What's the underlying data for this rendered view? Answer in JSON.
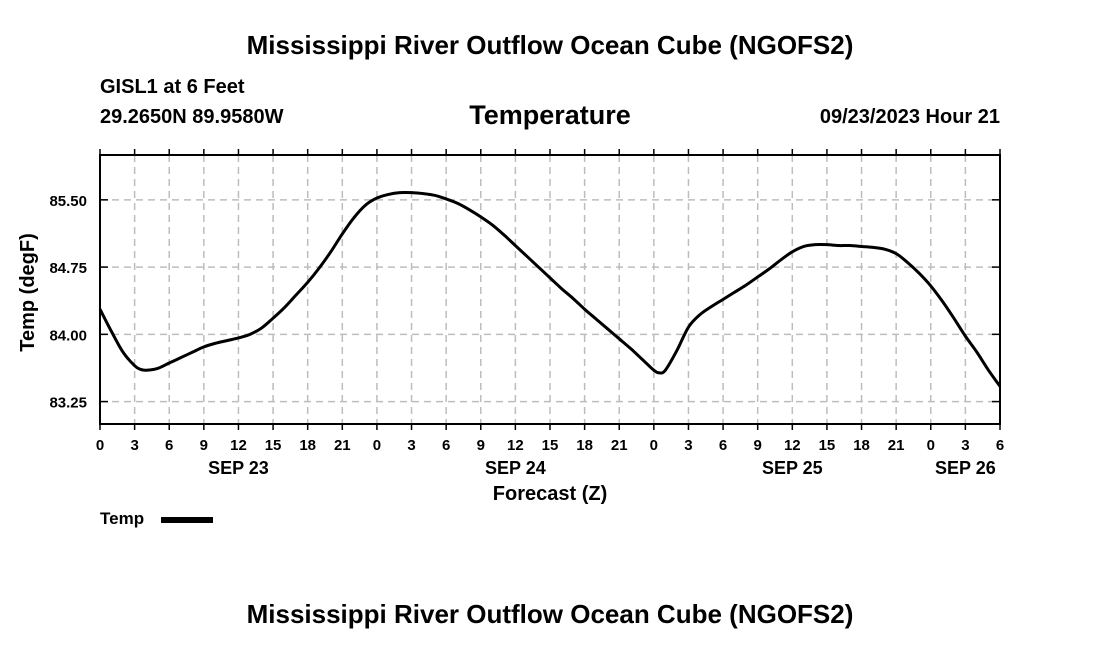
{
  "header": {
    "title": "Mississippi River Outflow Ocean Cube (NGOFS2)",
    "station": "GISL1 at 6 Feet",
    "coords": "29.2650N  89.9580W",
    "variable": "Temperature",
    "datetime": "09/23/2023 Hour 21"
  },
  "footer": {
    "title": "Mississippi River Outflow Ocean Cube (NGOFS2)"
  },
  "legend": {
    "label": "Temp",
    "color": "#000000"
  },
  "chart_data": {
    "type": "line",
    "title": "Temperature",
    "xlabel": "Forecast (Z)",
    "ylabel": "Temp (degF)",
    "x_unit": "hours since 09/23/2023 00Z",
    "xlim": [
      0,
      78
    ],
    "ylim": [
      83.0,
      86.0
    ],
    "grid": true,
    "yticks": [
      83.25,
      84.0,
      84.75,
      85.5
    ],
    "ytick_labels": [
      "83.25",
      "84.00",
      "84.75",
      "85.50"
    ],
    "xticks": [
      0,
      3,
      6,
      9,
      12,
      15,
      18,
      21,
      24,
      27,
      30,
      33,
      36,
      39,
      42,
      45,
      48,
      51,
      54,
      57,
      60,
      63,
      66,
      69,
      72,
      75,
      78
    ],
    "xtick_labels": [
      "0",
      "3",
      "6",
      "9",
      "12",
      "15",
      "18",
      "21",
      "0",
      "3",
      "6",
      "9",
      "12",
      "15",
      "18",
      "21",
      "0",
      "3",
      "6",
      "9",
      "12",
      "15",
      "18",
      "21",
      "0",
      "3",
      "6"
    ],
    "date_labels": [
      {
        "x": 12,
        "label": "SEP 23"
      },
      {
        "x": 36,
        "label": "SEP 24"
      },
      {
        "x": 60,
        "label": "SEP 25"
      },
      {
        "x": 75,
        "label": "SEP 26"
      }
    ],
    "series": [
      {
        "name": "Temp",
        "color": "#000000",
        "x": [
          0,
          1,
          2,
          3,
          3.5,
          4,
          5,
          6,
          7,
          8,
          9,
          10,
          11,
          12,
          13,
          14,
          15,
          16,
          17,
          18,
          19,
          20,
          21,
          22,
          23,
          24,
          25,
          26,
          27,
          28,
          29,
          30,
          31,
          32,
          33,
          34,
          35,
          36,
          37,
          38,
          39,
          40,
          41,
          42,
          43,
          44,
          45,
          46,
          47,
          48,
          48.5,
          49,
          50,
          51,
          52,
          53,
          54,
          55,
          56,
          57,
          58,
          59,
          60,
          61,
          62,
          63,
          64,
          65,
          66,
          67,
          68,
          69,
          70,
          71,
          72,
          73,
          74,
          75,
          76,
          77,
          78
        ],
        "values": [
          84.28,
          84.03,
          83.8,
          83.65,
          83.61,
          83.6,
          83.62,
          83.68,
          83.74,
          83.8,
          83.86,
          83.9,
          83.93,
          83.96,
          84.0,
          84.07,
          84.18,
          84.3,
          84.44,
          84.58,
          84.74,
          84.92,
          85.12,
          85.3,
          85.44,
          85.52,
          85.56,
          85.58,
          85.58,
          85.57,
          85.55,
          85.51,
          85.46,
          85.39,
          85.31,
          85.22,
          85.11,
          84.99,
          84.87,
          84.75,
          84.63,
          84.51,
          84.4,
          84.28,
          84.17,
          84.06,
          83.95,
          83.84,
          83.72,
          83.6,
          83.57,
          83.6,
          83.82,
          84.08,
          84.22,
          84.31,
          84.39,
          84.47,
          84.55,
          84.64,
          84.73,
          84.83,
          84.92,
          84.98,
          85.0,
          85.0,
          84.99,
          84.99,
          84.98,
          84.97,
          84.95,
          84.9,
          84.8,
          84.68,
          84.54,
          84.37,
          84.18,
          83.98,
          83.8,
          83.6,
          83.42
        ]
      }
    ]
  }
}
